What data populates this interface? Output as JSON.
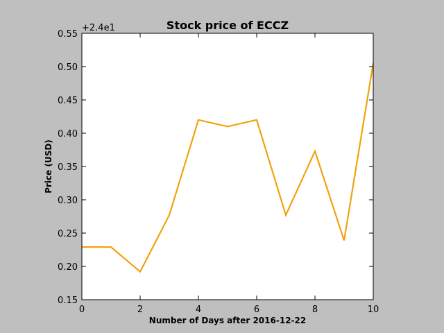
{
  "chart_data": {
    "type": "line",
    "title": "Stock price of ECCZ",
    "xlabel": "Number of Days after 2016-12-22",
    "ylabel": "Price (USD)",
    "offset_text": "+2.4e1",
    "xlim": [
      0,
      10
    ],
    "ylim": [
      0.15,
      0.55
    ],
    "x_ticks": [
      0,
      2,
      4,
      6,
      8,
      10
    ],
    "y_ticks": [
      0.15,
      0.2,
      0.25,
      0.3,
      0.35,
      0.4,
      0.45,
      0.5,
      0.55
    ],
    "x_tick_labels": [
      "0",
      "2",
      "4",
      "6",
      "8",
      "10"
    ],
    "y_tick_labels": [
      "0.15",
      "0.20",
      "0.25",
      "0.30",
      "0.35",
      "0.40",
      "0.45",
      "0.50",
      "0.55"
    ],
    "grid": false,
    "series": [
      {
        "color": "#f2a20c",
        "x": [
          0,
          1,
          2,
          3,
          4,
          5,
          6,
          7,
          8,
          9,
          10
        ],
        "y": [
          0.229,
          0.229,
          0.192,
          0.277,
          0.42,
          0.41,
          0.42,
          0.277,
          0.373,
          0.239,
          0.505
        ]
      }
    ]
  }
}
